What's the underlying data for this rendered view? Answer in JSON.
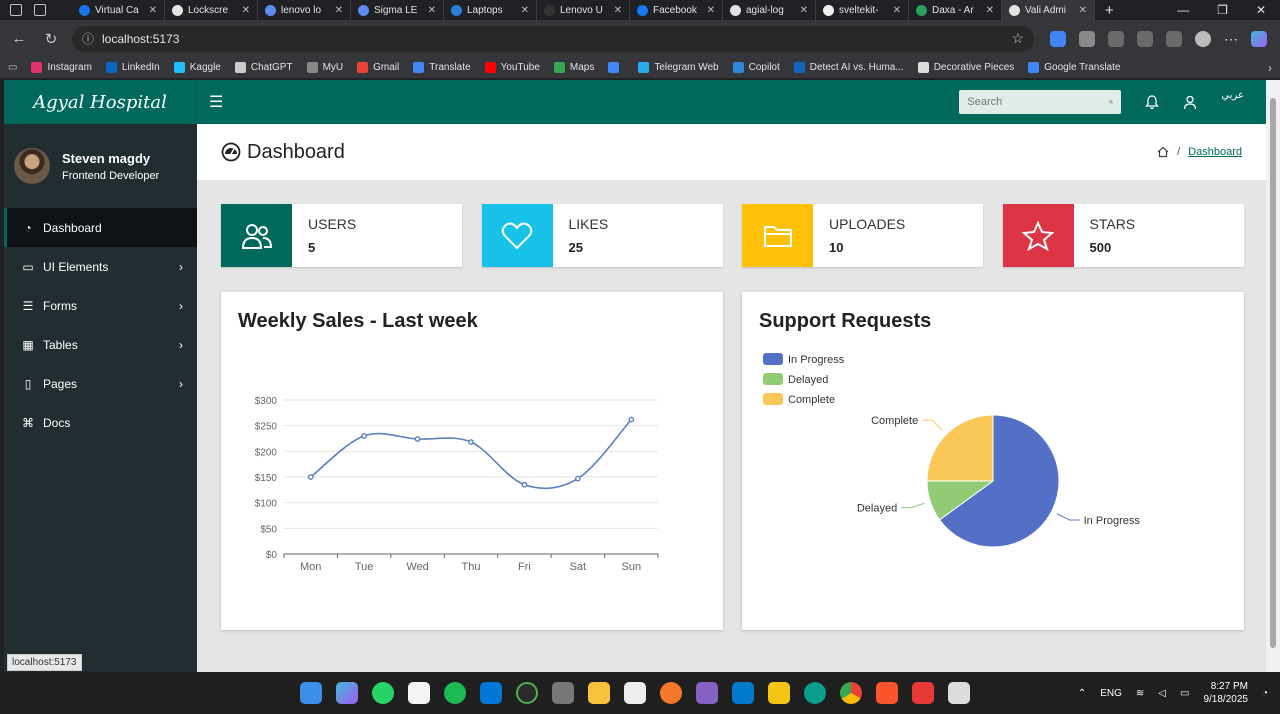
{
  "browser": {
    "tabs": [
      {
        "label": "Virtual Ca",
        "color": "#1a73e8"
      },
      {
        "label": "Lockscre",
        "color": "#e3e3e3"
      },
      {
        "label": "lenovo lo",
        "color": "#5f8bf0"
      },
      {
        "label": "Sigma LE",
        "color": "#5f8bf0"
      },
      {
        "label": "Laptops",
        "color": "#2b7fd9"
      },
      {
        "label": "Lenovo U",
        "color": "#333333"
      },
      {
        "label": "Facebook",
        "color": "#1877f2"
      },
      {
        "label": "agial-log",
        "color": "#e3e3e3"
      },
      {
        "label": "sveltekit-",
        "color": "#f0f0f0"
      },
      {
        "label": "Daxa - Ar",
        "color": "#2e9e5b"
      },
      {
        "label": "Vali Admi",
        "color": "#e3e3e3"
      }
    ],
    "url": "localhost:5173",
    "bookmarks": [
      {
        "label": "Instagram",
        "color": "#e1306c"
      },
      {
        "label": "LinkedIn",
        "color": "#0a66c2"
      },
      {
        "label": "Kaggle",
        "color": "#20beff"
      },
      {
        "label": "ChatGPT",
        "color": "#cccccc"
      },
      {
        "label": "MyU",
        "color": "#888888"
      },
      {
        "label": "Gmail",
        "color": "#ea4335"
      },
      {
        "label": "Translate",
        "color": "#4285f4"
      },
      {
        "label": "YouTube",
        "color": "#ff0000"
      },
      {
        "label": "Maps",
        "color": "#34a853"
      },
      {
        "label": "",
        "color": "#4285f4"
      },
      {
        "label": "Telegram Web",
        "color": "#2aabee"
      },
      {
        "label": "Copilot",
        "color": "#2b88d8"
      },
      {
        "label": "Detect AI vs. Huma...",
        "color": "#1565c0"
      },
      {
        "label": "Decorative Pieces",
        "color": "#dddddd"
      },
      {
        "label": "Google Translate",
        "color": "#4285f4"
      }
    ],
    "status_url": "localhost:5173"
  },
  "app": {
    "logo": "Agyal Hospital",
    "search_placeholder": "Search",
    "lang": "عربي",
    "user": {
      "name": "Steven magdy",
      "role": "Frontend Developer"
    },
    "menu": [
      {
        "label": "Dashboard",
        "icon": "dashboard-icon",
        "glyph": "◔",
        "active": true,
        "chevron": false
      },
      {
        "label": "UI Elements",
        "icon": "laptop-icon",
        "glyph": "▭",
        "active": false,
        "chevron": true
      },
      {
        "label": "Forms",
        "icon": "forms-icon",
        "glyph": "☰",
        "active": false,
        "chevron": true
      },
      {
        "label": "Tables",
        "icon": "table-icon",
        "glyph": "▦",
        "active": false,
        "chevron": true
      },
      {
        "label": "Pages",
        "icon": "file-icon",
        "glyph": "▯",
        "active": false,
        "chevron": true
      },
      {
        "label": "Docs",
        "icon": "code-icon",
        "glyph": "⌘",
        "active": false,
        "chevron": false
      }
    ],
    "page_title": "Dashboard",
    "breadcrumb": "Dashboard",
    "stats": [
      {
        "label": "USERS",
        "value": "5",
        "color": "#00695c",
        "icon": "users-icon"
      },
      {
        "label": "LIKES",
        "value": "25",
        "color": "#17c1e8",
        "icon": "heart-icon"
      },
      {
        "label": "UPLOADES",
        "value": "10",
        "color": "#ffc107",
        "icon": "folder-icon"
      },
      {
        "label": "STARS",
        "value": "500",
        "color": "#dc3545",
        "icon": "star-icon"
      }
    ],
    "line_card_title": "Weekly Sales - Last week",
    "pie_card_title": "Support Requests"
  },
  "taskbar": {
    "lang": "ENG",
    "time": "8:27 PM",
    "date": "9/18/2025"
  },
  "chart_data": [
    {
      "type": "line",
      "title": "Weekly Sales - Last week",
      "categories": [
        "Mon",
        "Tue",
        "Wed",
        "Thu",
        "Fri",
        "Sat",
        "Sun"
      ],
      "values": [
        150,
        230,
        224,
        218,
        135,
        147,
        262
      ],
      "yticks": [
        "$0",
        "$50",
        "$100",
        "$150",
        "$200",
        "$250",
        "$300"
      ],
      "ylim": [
        0,
        300
      ],
      "color": "#5b7fbf",
      "grid": true
    },
    {
      "type": "pie",
      "title": "Support Requests",
      "series": [
        {
          "name": "In Progress",
          "value": 65,
          "color": "#5470c6"
        },
        {
          "name": "Delayed",
          "value": 10,
          "color": "#91cc75"
        },
        {
          "name": "Complete",
          "value": 25,
          "color": "#fac858"
        }
      ],
      "legend": "top-left"
    }
  ]
}
